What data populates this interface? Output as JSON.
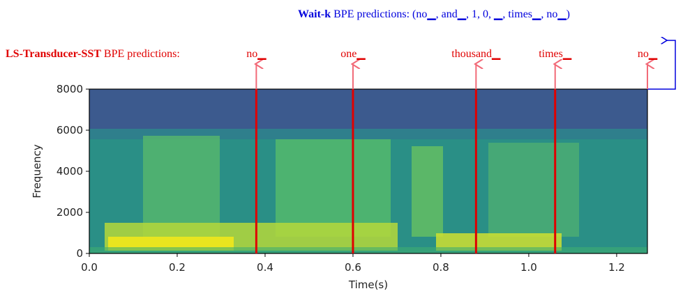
{
  "chart_data": {
    "type": "spectrogram",
    "x_label": "Time(s)",
    "y_label": "Frequency",
    "xlim": [
      0,
      1.27
    ],
    "xticks": [
      {
        "value": 0,
        "label": "0.0"
      },
      0.2,
      0.4,
      0.6,
      0.8,
      {
        "value": 1,
        "label": "1.0"
      },
      1.2
    ],
    "ylim": [
      0,
      8000
    ],
    "yticks": [
      0,
      2000,
      4000,
      6000,
      8000
    ],
    "wait_k": {
      "label": "Wait-k",
      "text": "BPE predictions:",
      "predictions": "(no▁, and▁, 1, 0, ▁, times▁, no▁)",
      "color": "#0000dd"
    },
    "ls_transducer": {
      "label": "LS-Transducer-SST",
      "text": "BPE predictions:",
      "color": "#e00000",
      "arrow_color": "#f26a78",
      "emissions": [
        {
          "token": "no▁",
          "time": 0.38
        },
        {
          "token": "one▁",
          "time": 0.6
        },
        {
          "token": "thousand▁",
          "time": 0.88
        },
        {
          "token": "times▁",
          "time": 1.06
        },
        {
          "token": "no▁",
          "time": 1.27
        }
      ]
    }
  }
}
